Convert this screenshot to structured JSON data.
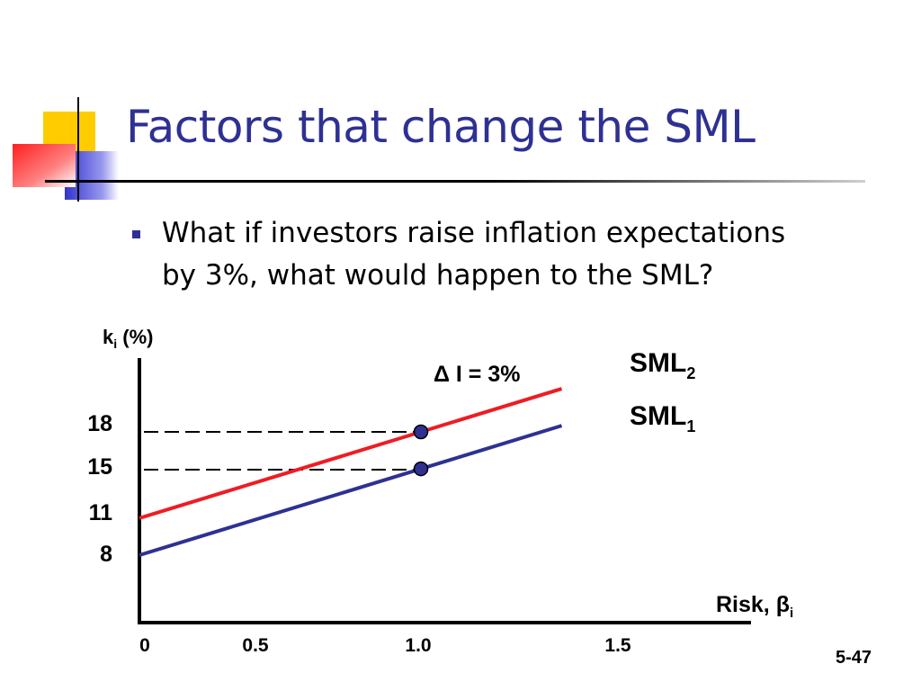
{
  "slide": {
    "title": "Factors that change the SML",
    "bullet_lines": [
      "What if investors raise inflation expectations",
      "by 3%, what would happen to the SML?"
    ],
    "page_number": "5-47"
  },
  "colors": {
    "title": "#2e3192",
    "sml1": "#2e3192",
    "sml2": "#ee1c24",
    "point_fill": "#2e3192"
  },
  "chart_data": {
    "type": "line",
    "ylabel": "k",
    "ylabel_sub": "i",
    "ylabel_suffix": " (%)",
    "xlabel": "Risk, β",
    "xlabel_sub": "i",
    "x_ticks": [
      "0",
      "0.5",
      "1.0",
      "1.5"
    ],
    "y_ticks": [
      "8",
      "11",
      "15",
      "18"
    ],
    "xlim": [
      0,
      1.5
    ],
    "series": [
      {
        "name": "SML",
        "sub": "1",
        "x": [
          0,
          1.5
        ],
        "y": [
          8,
          18.5
        ]
      },
      {
        "name": "SML",
        "sub": "2",
        "x": [
          0,
          1.5
        ],
        "y": [
          11,
          21.5
        ]
      }
    ],
    "points": [
      {
        "x": 1.0,
        "y": 15
      },
      {
        "x": 1.0,
        "y": 18
      }
    ],
    "annotation": "Δ I = 3%"
  }
}
